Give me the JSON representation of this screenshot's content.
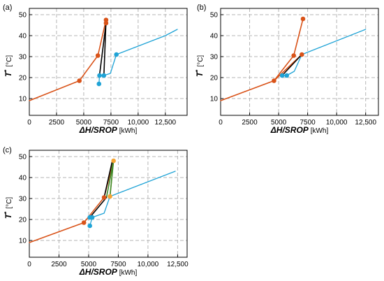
{
  "chart_data": [
    {
      "panel": "(a)",
      "type": "line",
      "xlabel_symbol": "ΔH/SROP",
      "xlabel_unit": "[kWh]",
      "ylabel_symbol": "T",
      "ylabel_sup": "*",
      "ylabel_unit": "[°C]",
      "xlim": [
        0,
        14500
      ],
      "ylim": [
        2,
        53
      ],
      "xticks": [
        0,
        2500,
        5000,
        7500,
        10000,
        12500
      ],
      "xtick_labels": [
        "0",
        "2500",
        "5000",
        "7500",
        "10,000",
        "12,500"
      ],
      "yticks": [
        10,
        20,
        30,
        40,
        50
      ],
      "ytick_labels": [
        "10",
        "20",
        "30",
        "40",
        "50"
      ],
      "grid": true,
      "colors": {
        "hot": "#d95319",
        "cold": "#1fa3d6",
        "link": "#000000"
      },
      "series": [
        {
          "role": "hot",
          "x": [
            0,
            4600,
            6300,
            7050,
            7050
          ],
          "y": [
            9,
            18.5,
            30.5,
            47.5,
            46
          ],
          "markers": [
            [
              4600,
              18.5
            ],
            [
              6300,
              30.5
            ],
            [
              7050,
              47.5
            ],
            [
              7050,
              46
            ]
          ]
        },
        {
          "role": "cold",
          "x": [
            6400,
            6450,
            6850,
            7450,
            8000,
            12500,
            13600
          ],
          "y": [
            17,
            21,
            21,
            22,
            31,
            40,
            43
          ],
          "markers": [
            [
              6400,
              17
            ],
            [
              6450,
              21
            ],
            [
              6850,
              21
            ],
            [
              8000,
              31
            ]
          ]
        },
        {
          "role": "link",
          "x": [
            6450,
            7050
          ],
          "y": [
            21,
            46
          ]
        },
        {
          "role": "link",
          "x": [
            6850,
            7050
          ],
          "y": [
            21,
            47.5
          ]
        }
      ]
    },
    {
      "panel": "(b)",
      "type": "line",
      "xlabel_symbol": "ΔH/SROP",
      "xlabel_unit": "[kWh]",
      "ylabel_symbol": "T",
      "ylabel_sup": "*",
      "ylabel_unit": "[°C]",
      "xlim": [
        0,
        13600
      ],
      "ylim": [
        2,
        53
      ],
      "xticks": [
        0,
        2500,
        5000,
        7500,
        10000,
        12500
      ],
      "xtick_labels": [
        "0",
        "2500",
        "5000",
        "7500",
        "10,000",
        "12,500"
      ],
      "yticks": [
        10,
        20,
        30,
        40,
        50
      ],
      "ytick_labels": [
        "10",
        "20",
        "30",
        "40",
        "50"
      ],
      "grid": true,
      "colors": {
        "hot": "#d95319",
        "cold": "#1fa3d6",
        "link": "#000000"
      },
      "series": [
        {
          "role": "hot",
          "x": [
            0,
            4600,
            6300,
            7100
          ],
          "y": [
            9,
            18.5,
            30.5,
            48
          ],
          "markers": [
            [
              4600,
              18.5
            ],
            [
              6300,
              30.5
            ],
            [
              7100,
              48
            ]
          ]
        },
        {
          "role": "hot",
          "x": [
            4600,
            7000
          ],
          "y": [
            18.5,
            31
          ],
          "markers": [
            [
              7000,
              31
            ]
          ]
        },
        {
          "role": "cold",
          "x": [
            5300,
            5700,
            6350,
            7000,
            12500
          ],
          "y": [
            21,
            21,
            23,
            31,
            43
          ],
          "markers": [
            [
              5300,
              21
            ],
            [
              5700,
              21
            ]
          ]
        },
        {
          "role": "link",
          "x": [
            5300,
            7000
          ],
          "y": [
            21,
            31
          ]
        }
      ]
    },
    {
      "panel": "(c)",
      "type": "line",
      "xlabel_symbol": "ΔH/SROP",
      "xlabel_unit": "[kWh]",
      "ylabel_symbol": "T",
      "ylabel_sup": "*",
      "ylabel_unit": "[°C]",
      "xlim": [
        0,
        13300
      ],
      "ylim": [
        2,
        53
      ],
      "xticks": [
        0,
        2500,
        5000,
        7500,
        10000,
        12500
      ],
      "xtick_labels": [
        "0",
        "2500",
        "5000",
        "7500",
        "10,000",
        "12,500"
      ],
      "yticks": [
        10,
        20,
        30,
        40,
        50
      ],
      "ytick_labels": [
        "10",
        "20",
        "30",
        "40",
        "50"
      ],
      "grid": true,
      "colors": {
        "hot": "#d95319",
        "cold": "#1fa3d6",
        "link": "#000000",
        "green": "#3a8a2a",
        "orange_light": "#f5a534"
      },
      "series": [
        {
          "role": "hot",
          "x": [
            0,
            4600,
            6300,
            7100
          ],
          "y": [
            9,
            18.5,
            30.5,
            48
          ],
          "markers": [
            [
              4600,
              18.5
            ],
            [
              6300,
              30.5
            ]
          ]
        },
        {
          "role": "cold",
          "x": [
            5100,
            5300,
            6300,
            6800,
            12300
          ],
          "y": [
            17,
            21,
            23,
            31,
            43
          ],
          "markers": [
            [
              5100,
              17
            ],
            [
              5100,
              21
            ],
            [
              5300,
              21
            ]
          ]
        },
        {
          "role": "link",
          "x": [
            5100,
            6500
          ],
          "y": [
            21,
            30.5
          ]
        },
        {
          "role": "link",
          "x": [
            6300,
            7000,
            6300
          ],
          "y": [
            30.5,
            48,
            30.5
          ]
        },
        {
          "role": "green",
          "x": [
            6500,
            7100,
            6800
          ],
          "y": [
            30.5,
            48,
            31
          ]
        },
        {
          "role": "orange_light",
          "x": [
            6800,
            7100
          ],
          "y": [
            31,
            48
          ],
          "markers": [
            [
              7100,
              48
            ],
            [
              6800,
              31
            ]
          ]
        }
      ]
    }
  ]
}
